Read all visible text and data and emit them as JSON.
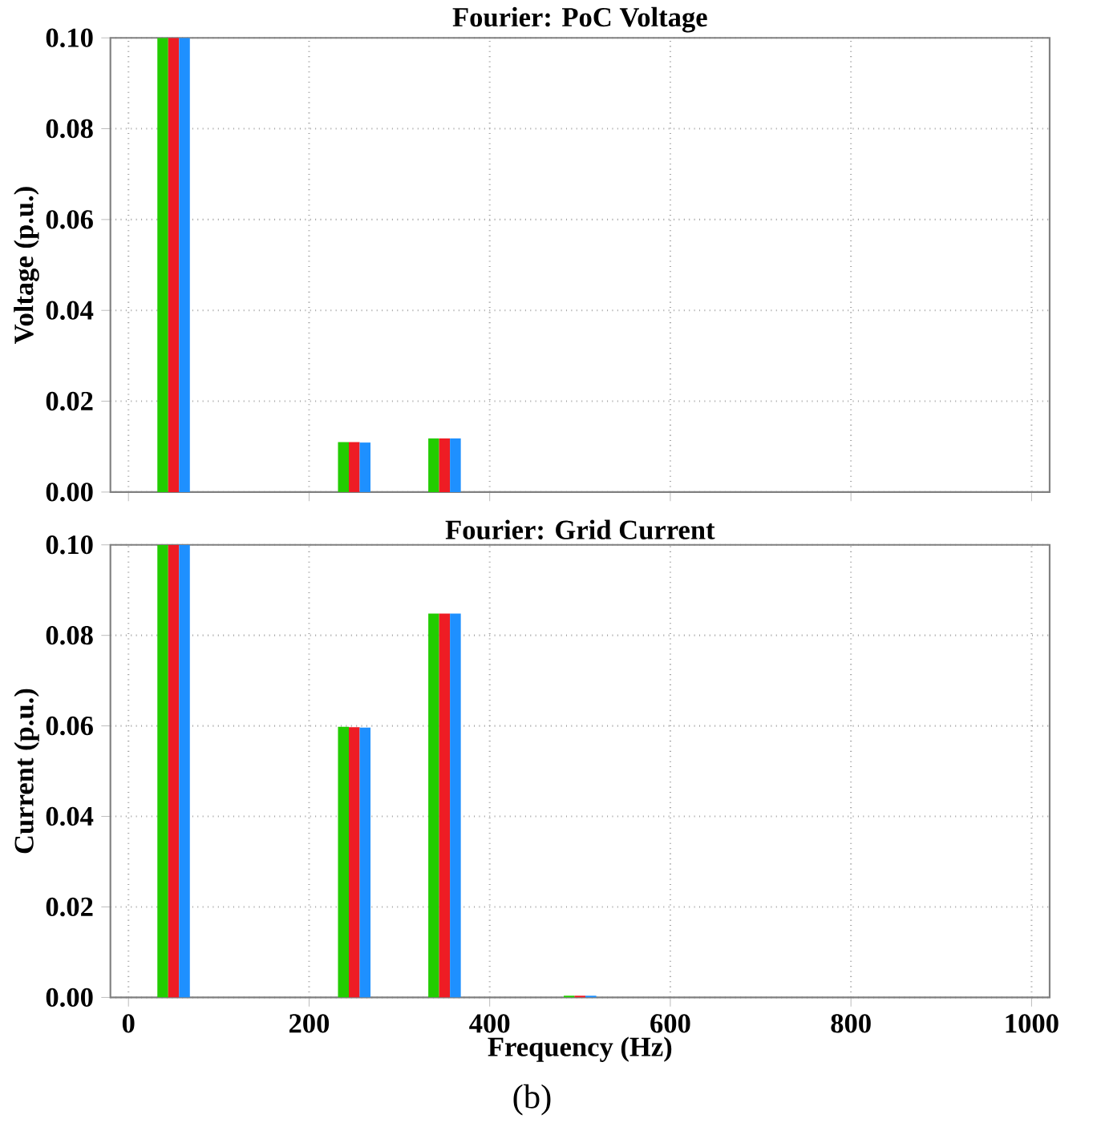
{
  "chart_data": [
    {
      "type": "bar",
      "title": "Fourier: PoC Voltage",
      "ylabel": "Voltage (p.u.)",
      "x": [
        50,
        250,
        350
      ],
      "series": [
        {
          "color": "#22cc00",
          "values": [
            0.1,
            0.011,
            0.0118
          ]
        },
        {
          "color": "#ee1c24",
          "values": [
            0.1,
            0.011,
            0.0118
          ]
        },
        {
          "color": "#1e90ff",
          "values": [
            0.1,
            0.0109,
            0.0118
          ]
        }
      ],
      "xlim": [
        -20,
        1020
      ],
      "ylim": [
        0,
        0.1
      ],
      "xticks": [
        0,
        200,
        400,
        600,
        800,
        1000
      ],
      "yticks": [
        {
          "value": 0,
          "label": "0.00"
        },
        {
          "value": 0.02,
          "label": "0.02"
        },
        {
          "value": 0.04,
          "label": "0.04"
        },
        {
          "value": 0.06,
          "label": "0.06"
        },
        {
          "value": 0.08,
          "label": "0.08"
        },
        {
          "value": 0.1,
          "label": "0.10"
        }
      ],
      "grid": true,
      "tick_labels": "y"
    },
    {
      "type": "bar",
      "title": "Fourier: Grid Current",
      "xlabel": "Frequency (Hz)",
      "ylabel": "Current (p.u.)",
      "x": [
        50,
        250,
        350,
        500
      ],
      "series": [
        {
          "color": "#22cc00",
          "values": [
            0.1,
            0.0598,
            0.0848,
            0.0004
          ]
        },
        {
          "color": "#ee1c24",
          "values": [
            0.1,
            0.0597,
            0.0848,
            0.0004
          ]
        },
        {
          "color": "#1e90ff",
          "values": [
            0.1,
            0.0596,
            0.0848,
            0.0004
          ]
        }
      ],
      "xlim": [
        -20,
        1020
      ],
      "ylim": [
        0,
        0.1
      ],
      "xticks": [
        0,
        200,
        400,
        600,
        800,
        1000
      ],
      "yticks": [
        {
          "value": 0,
          "label": "0.00"
        },
        {
          "value": 0.02,
          "label": "0.02"
        },
        {
          "value": 0.04,
          "label": "0.04"
        },
        {
          "value": 0.06,
          "label": "0.06"
        },
        {
          "value": 0.08,
          "label": "0.08"
        },
        {
          "value": 0.1,
          "label": "0.10"
        }
      ],
      "grid": true,
      "annotations": [
        "(b)"
      ]
    }
  ]
}
